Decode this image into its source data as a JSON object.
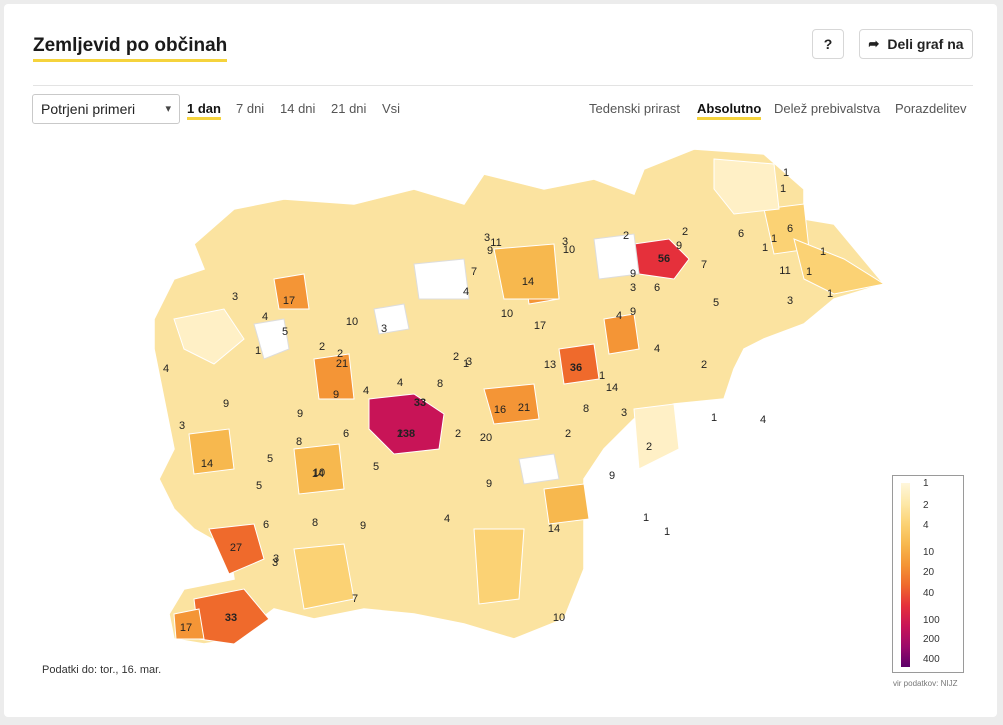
{
  "header": {
    "title": "Zemljevid po občinah",
    "help_label": "?",
    "share_label": "Deli graf na"
  },
  "controls": {
    "metric_select": "Potrjeni primeri",
    "period_tabs": [
      {
        "label": "1 dan",
        "active": true
      },
      {
        "label": "7 dni",
        "active": false
      },
      {
        "label": "14 dni",
        "active": false
      },
      {
        "label": "21 dni",
        "active": false
      },
      {
        "label": "Vsi",
        "active": false
      }
    ],
    "view_tabs": [
      {
        "label": "Tedenski prirast",
        "active": false
      },
      {
        "label": "Absolutno",
        "active": true
      },
      {
        "label": "Delež prebivalstva",
        "active": false
      },
      {
        "label": "Porazdelitev",
        "active": false
      }
    ]
  },
  "legend": {
    "labels": [
      "1",
      "2",
      "4",
      "10",
      "20",
      "40",
      "100",
      "200",
      "400"
    ],
    "gradient_colors": [
      "#fff7dc",
      "#fde8a8",
      "#fbd274",
      "#f7b84e",
      "#f49536",
      "#ef6a2c",
      "#e5303b",
      "#c81457",
      "#9c0a6a",
      "#5c0069"
    ]
  },
  "footer": {
    "data_date": "Podatki do: tor., 16. mar.",
    "source": "vir podatkov: NIJZ"
  },
  "map": {
    "labels": [
      "138",
      "56",
      "36",
      "33",
      "33",
      "27",
      "21",
      "21",
      "20",
      "17",
      "17",
      "17",
      "16",
      "14",
      "14",
      "14",
      "14",
      "14",
      "13",
      "11",
      "11",
      "10",
      "10",
      "10",
      "10",
      "10",
      "9",
      "9",
      "9",
      "9",
      "9",
      "9",
      "9",
      "9",
      "9",
      "9",
      "8",
      "8",
      "8",
      "8",
      "7",
      "7",
      "7",
      "6",
      "6",
      "6",
      "6",
      "6",
      "5",
      "5",
      "5",
      "5",
      "5",
      "4",
      "4",
      "4",
      "4",
      "4",
      "4",
      "4",
      "4",
      "4",
      "3",
      "3",
      "3",
      "3",
      "3",
      "3",
      "3",
      "3",
      "3",
      "3",
      "3",
      "2",
      "2",
      "2",
      "2",
      "2",
      "2",
      "2",
      "2",
      "2",
      "2",
      "1",
      "1",
      "1",
      "1",
      "1",
      "1",
      "1",
      "1",
      "1",
      "1",
      "1",
      "1",
      "1",
      "1",
      "1"
    ]
  }
}
